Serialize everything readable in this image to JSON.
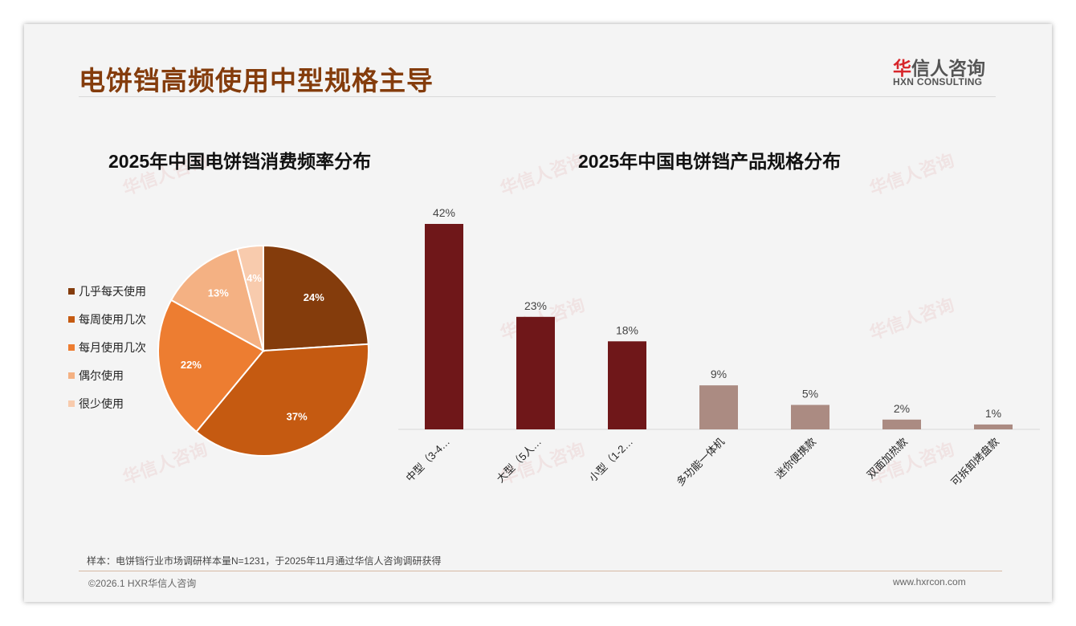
{
  "header": {
    "title": "电饼铛高频使用中型规格主导",
    "logo_cn_red": "华",
    "logo_cn": "信人咨询",
    "logo_en": "HXN CONSULTING"
  },
  "colors": {
    "title": "#843c0c",
    "bar_main": "#6f1719",
    "bar_minor": "#ab8b82"
  },
  "chart_data": [
    {
      "type": "pie",
      "title": "2025年中国电饼铛消费频率分布",
      "categories": [
        "几乎每天使用",
        "每周使用几次",
        "每月使用几次",
        "偶尔使用",
        "很少使用"
      ],
      "values": [
        24,
        37,
        22,
        13,
        4
      ],
      "labels": [
        "24%",
        "37%",
        "22%",
        "13%",
        "4%"
      ],
      "colors": [
        "#843c0c",
        "#c55a11",
        "#ed7d31",
        "#f4b183",
        "#f8cbad"
      ],
      "legend": "left"
    },
    {
      "type": "bar",
      "title": "2025年中国电饼铛产品规格分布",
      "categories": [
        "中型（3-4…",
        "大型（5人…",
        "小型（1-2…",
        "多功能一体机",
        "迷你便携款",
        "双面加热款",
        "可拆卸烤盘款"
      ],
      "values": [
        42,
        23,
        18,
        9,
        5,
        2,
        1
      ],
      "labels": [
        "42%",
        "23%",
        "18%",
        "9%",
        "5%",
        "2%",
        "1%"
      ],
      "ylim": [
        0,
        45
      ]
    }
  ],
  "footer": {
    "note": "样本：电饼铛行业市场调研样本量N=1231，于2025年11月通过华信人咨询调研获得",
    "copyright": "©2026.1 HXR华信人咨询",
    "url": "www.hxrcon.com"
  }
}
